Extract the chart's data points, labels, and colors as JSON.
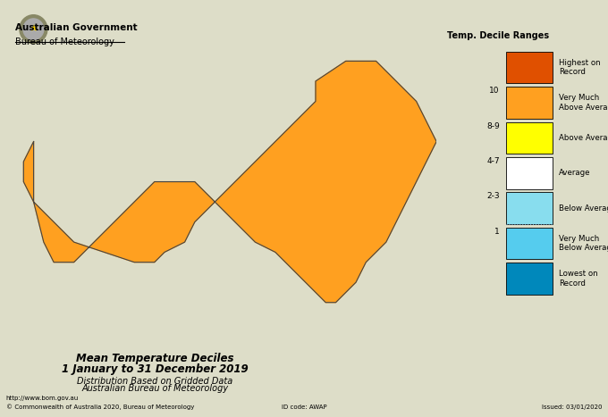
{
  "title": "Mean Temperature Deciles",
  "subtitle1": "1 January to 31 December 2019",
  "subtitle2": "Distribution Based on Gridded Data",
  "subtitle3": "Australian Bureau of Meteorology",
  "legend_title": "Temp. Decile Ranges",
  "legend_items": [
    {
      "label": "Highest on\nRecord",
      "color": "#E05000",
      "tick": ""
    },
    {
      "label": "Very Much\nAbove Average",
      "color": "#FFA020",
      "tick": "10"
    },
    {
      "label": "Above Average",
      "color": "#FFFF00",
      "tick": "8-9"
    },
    {
      "label": "Average",
      "color": "#FFFFFF",
      "tick": "4-7"
    },
    {
      "label": "Below Average",
      "color": "#88DDEE",
      "tick": "2-3"
    },
    {
      "label": "Very Much\nBelow Average",
      "color": "#55CCEE",
      "tick": "1"
    },
    {
      "label": "Lowest on\nRecord",
      "color": "#0088BB",
      "tick": ""
    }
  ],
  "footer_left1": "http://www.bom.gov.au",
  "footer_left2": "© Commonwealth of Australia 2020, Bureau of Meteorology",
  "footer_mid": "ID code: AWAP",
  "footer_right": "Issued: 03/01/2020",
  "bg_color": "#DDDDC8",
  "map_bg": "#B8CCDC",
  "ocean_color": "#B8CCDC",
  "gov_text1": "Australian Government",
  "gov_text2": "Bureau of Meteorology",
  "coast_color": "#444444",
  "border_color": "#666666",
  "dashed_line_color": "#6699BB"
}
